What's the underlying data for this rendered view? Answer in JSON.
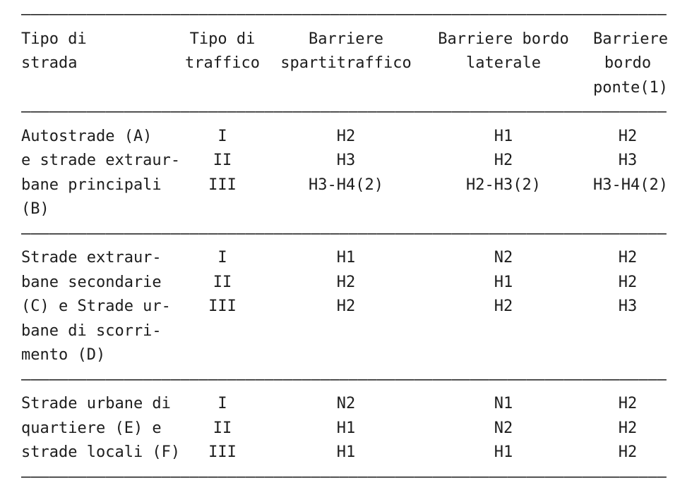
{
  "colors": {
    "background": "#ffffff",
    "text": "#1d1d1d"
  },
  "table": {
    "separator": "–––––––––––––––––––––––––––––––––––––––––––––––––––––––––––––––––––––",
    "header": {
      "road_type": [
        "Tipo di",
        "strada"
      ],
      "traffic": [
        "Tipo di",
        "traffico"
      ],
      "median_barriers": [
        "Barriere",
        "spartitraffico"
      ],
      "lateral_edge_barriers": [
        "Barriere bordo",
        "laterale"
      ],
      "bridge_edge_barriers": [
        "Barriere",
        "bordo",
        "ponte(1)"
      ]
    },
    "sections": [
      {
        "road_lines": [
          "Autostrade (A)",
          "e strade extraur-",
          "bane principali",
          "(B)"
        ],
        "traffic": [
          "I",
          "II",
          "III"
        ],
        "spartitraffico": [
          "H2",
          "H3",
          "H3-H4(2)"
        ],
        "bordo_laterale": [
          "H1",
          "H2",
          "H2-H3(2)"
        ],
        "bordo_ponte": [
          "H2",
          "H3",
          "H3-H4(2)"
        ]
      },
      {
        "road_lines": [
          "Strade extraur-",
          "bane secondarie",
          "(C) e Strade ur-",
          "bane di scorri-",
          "mento (D)"
        ],
        "traffic": [
          "I",
          "II",
          "III"
        ],
        "spartitraffico": [
          "H1",
          "H2",
          "H2"
        ],
        "bordo_laterale": [
          "N2",
          "H1",
          "H2"
        ],
        "bordo_ponte": [
          "H2",
          "H2",
          "H3"
        ]
      },
      {
        "road_lines": [
          "Strade urbane di",
          "quartiere (E) e",
          "strade locali (F)"
        ],
        "traffic": [
          "I",
          "II",
          "III"
        ],
        "spartitraffico": [
          "N2",
          "H1",
          "H1"
        ],
        "bordo_laterale": [
          "N1",
          "N2",
          "H1"
        ],
        "bordo_ponte": [
          "H2",
          "H2",
          "H2"
        ]
      }
    ]
  }
}
